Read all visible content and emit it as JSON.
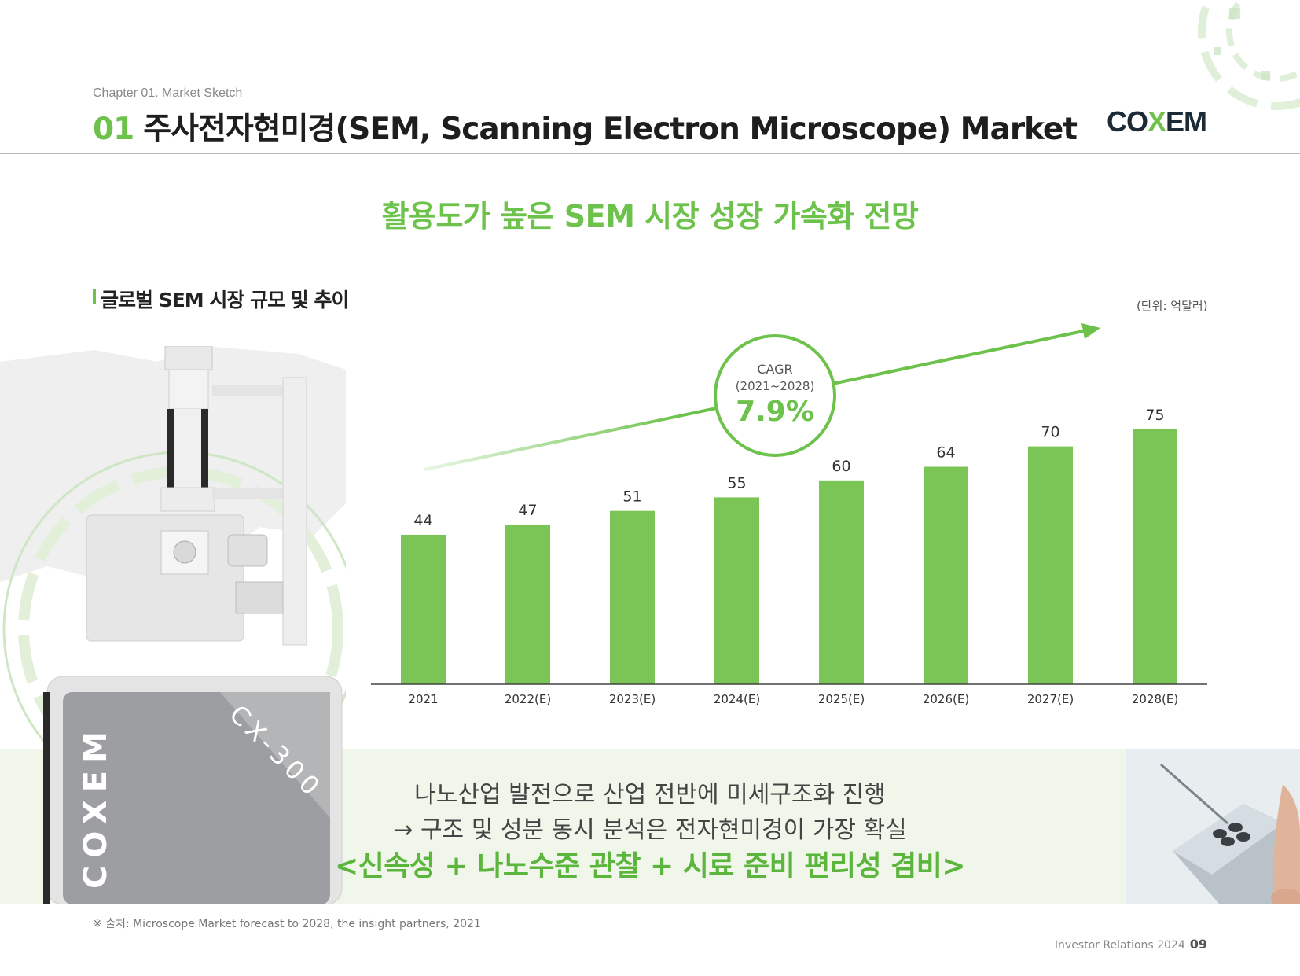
{
  "header": {
    "chapter": "Chapter 01. Market Sketch",
    "title_number": "01",
    "title_text": "주사전자현미경(SEM, Scanning Electron Microscope) Market",
    "logo": {
      "part1": "CO",
      "part2": "X",
      "part3": "EM"
    }
  },
  "headline": "활용도가 높은 SEM 시장 성장 가속화 전망",
  "section": {
    "title": "글로벌 SEM 시장 규모 및 추이",
    "unit": "(단위: 억달러)"
  },
  "cagr": {
    "label": "CAGR",
    "period": "(2021~2028)",
    "value": "7.9%"
  },
  "chart_data": {
    "type": "bar",
    "categories": [
      "2021",
      "2022(E)",
      "2023(E)",
      "2024(E)",
      "2025(E)",
      "2026(E)",
      "2027(E)",
      "2028(E)"
    ],
    "values": [
      44,
      47,
      51,
      55,
      60,
      64,
      70,
      75
    ],
    "ylim": [
      0,
      75
    ],
    "bar_color": "#7ac555",
    "legend": "none",
    "grid": false
  },
  "machine": {
    "brand": "COXEM",
    "model": "CX-300"
  },
  "message": {
    "line1": "나노산업 발전으로 산업 전반에 미세구조화 진행",
    "line2": "→ 구조 및 성분 동시 분석은 전자현미경이 가장 확실",
    "line3": "<신속성 + 나노수준 관찰 + 시료 준비 편리성 겸비>"
  },
  "source": "※ 출처: Microscope Market forecast to 2028, the insight partners, 2021",
  "footer": {
    "label": "Investor Relations 2024",
    "page": "09"
  },
  "colors": {
    "accent": "#6cc24a",
    "text": "#1e1e1e"
  }
}
